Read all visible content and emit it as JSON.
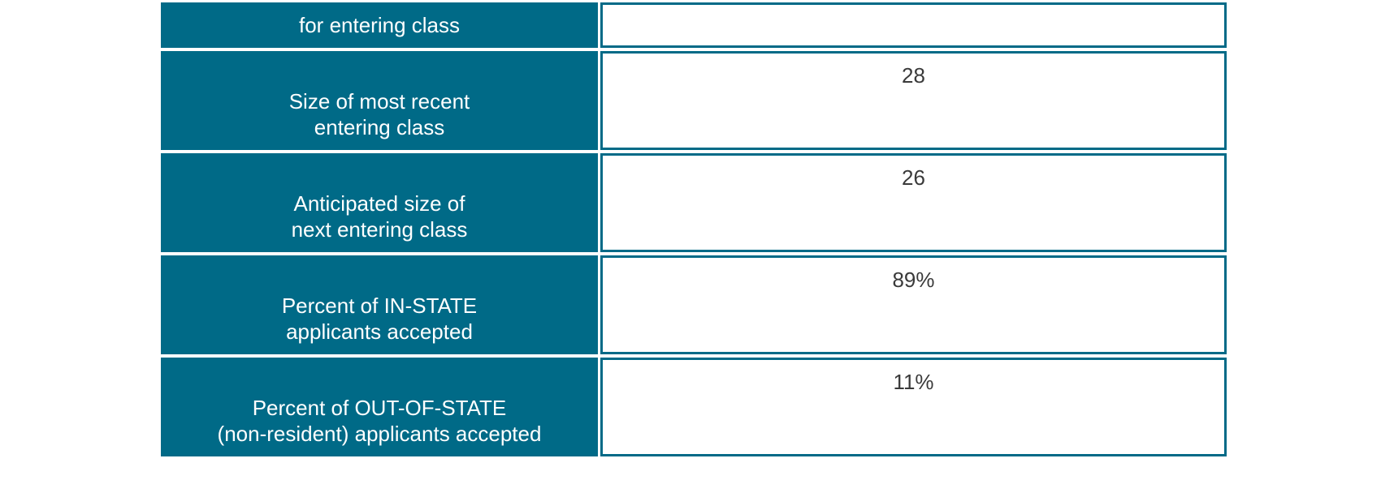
{
  "rows": [
    {
      "label": "for entering class",
      "value": ""
    },
    {
      "label": "Size of most recent\nentering class",
      "value": "28"
    },
    {
      "label": "Anticipated size of\nnext entering class",
      "value": "26"
    },
    {
      "label": "Percent of IN-STATE\napplicants accepted",
      "value": "89%"
    },
    {
      "label": "Percent of OUT-OF-STATE\n(non-resident) applicants accepted",
      "value": "11%"
    }
  ],
  "colors": {
    "label_background": "#006a87",
    "label_text": "#ffffff",
    "value_border": "#006a87",
    "value_text": "#3a3a3a"
  }
}
